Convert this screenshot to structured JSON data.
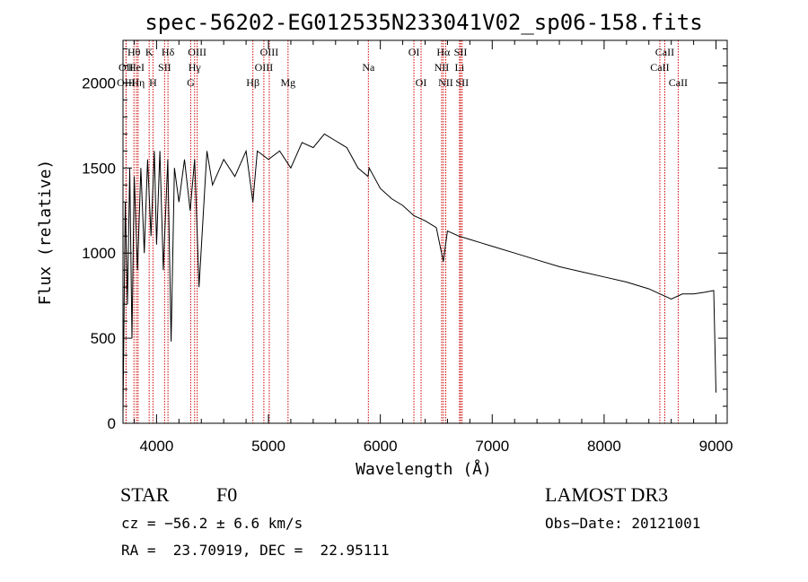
{
  "chart_data": {
    "type": "line",
    "title": "spec-56202-EG012535N233041V02_sp06-158.fits",
    "xlabel": "Wavelength (Å)",
    "ylabel": "Flux (relative)",
    "xlim": [
      3700,
      9100
    ],
    "ylim": [
      0,
      2250
    ],
    "xticks": [
      4000,
      5000,
      6000,
      7000,
      8000,
      9000
    ],
    "xtick_labels": [
      "4000",
      "5000",
      "6000",
      "7000",
      "8000",
      "9000"
    ],
    "yticks": [
      0,
      500,
      1000,
      1500,
      2000
    ],
    "ytick_labels": [
      "0",
      "500",
      "1000",
      "1500",
      "2000"
    ],
    "grid": false,
    "series": [
      {
        "name": "flux",
        "x": [
          3700,
          3720,
          3740,
          3760,
          3780,
          3800,
          3830,
          3860,
          3890,
          3920,
          3950,
          3980,
          4000,
          4030,
          4060,
          4100,
          4130,
          4160,
          4200,
          4250,
          4300,
          4340,
          4380,
          4450,
          4500,
          4600,
          4700,
          4800,
          4861,
          4900,
          5000,
          5100,
          5200,
          5300,
          5400,
          5500,
          5600,
          5700,
          5800,
          5890,
          5900,
          6000,
          6100,
          6200,
          6300,
          6400,
          6500,
          6563,
          6600,
          6700,
          6800,
          6900,
          7000,
          7200,
          7400,
          7600,
          7800,
          8000,
          8200,
          8400,
          8500,
          8600,
          8700,
          8800,
          8900,
          8980,
          9000
        ],
        "y": [
          50,
          1300,
          700,
          1500,
          500,
          1450,
          900,
          1500,
          1000,
          1550,
          1100,
          1600,
          1050,
          1600,
          900,
          1550,
          480,
          1500,
          1300,
          1550,
          1250,
          1550,
          800,
          1600,
          1400,
          1550,
          1450,
          1600,
          1300,
          1600,
          1550,
          1600,
          1500,
          1650,
          1620,
          1700,
          1660,
          1620,
          1500,
          1450,
          1500,
          1380,
          1320,
          1280,
          1220,
          1190,
          1150,
          950,
          1130,
          1100,
          1080,
          1060,
          1040,
          1000,
          960,
          920,
          890,
          860,
          830,
          790,
          760,
          730,
          760,
          760,
          770,
          780,
          180
        ]
      }
    ],
    "annotations": [
      {
        "label": "Hθ",
        "x": 3798,
        "row": 1
      },
      {
        "label": "OII",
        "x": 3727,
        "row": 2
      },
      {
        "label": "OIII",
        "x": 3728,
        "row": 3
      },
      {
        "label": "HeI",
        "x": 3820,
        "row": 2
      },
      {
        "label": "Hη",
        "x": 3835,
        "row": 3
      },
      {
        "label": "K",
        "x": 3934,
        "row": 1
      },
      {
        "label": "SII",
        "x": 4072,
        "row": 2
      },
      {
        "label": "H",
        "x": 3968,
        "row": 3
      },
      {
        "label": "Hδ",
        "x": 4102,
        "row": 1
      },
      {
        "label": "OIII",
        "x": 4363,
        "row": 1
      },
      {
        "label": "Hγ",
        "x": 4340,
        "row": 2
      },
      {
        "label": "G",
        "x": 4305,
        "row": 3
      },
      {
        "label": "Hβ",
        "x": 4861,
        "row": 3
      },
      {
        "label": "OIII",
        "x": 5007,
        "row": 1
      },
      {
        "label": "OIII",
        "x": 4959,
        "row": 2
      },
      {
        "label": "Mg",
        "x": 5175,
        "row": 3
      },
      {
        "label": "Na",
        "x": 5893,
        "row": 2
      },
      {
        "label": "OI",
        "x": 6300,
        "row": 1
      },
      {
        "label": "OI",
        "x": 6364,
        "row": 3
      },
      {
        "label": "Hα",
        "x": 6563,
        "row": 1
      },
      {
        "label": "NII",
        "x": 6548,
        "row": 2
      },
      {
        "label": "NII",
        "x": 6584,
        "row": 3
      },
      {
        "label": "SII",
        "x": 6717,
        "row": 1
      },
      {
        "label": "Li",
        "x": 6708,
        "row": 2
      },
      {
        "label": "SII",
        "x": 6731,
        "row": 3
      },
      {
        "label": "CaII",
        "x": 8542,
        "row": 1
      },
      {
        "label": "CaII",
        "x": 8498,
        "row": 2
      },
      {
        "label": "CaII",
        "x": 8662,
        "row": 3
      }
    ]
  },
  "info": {
    "object_class": "STAR",
    "subclass": "F0",
    "survey": "LAMOST DR3",
    "cz": "cz = −56.2 ± 6.6 km/s",
    "obs_date": "Obs−Date: 20121001",
    "coords": "RA =  23.70919, DEC =  22.95111"
  },
  "colors": {
    "line": "#000000",
    "marker": "#cc0000"
  }
}
